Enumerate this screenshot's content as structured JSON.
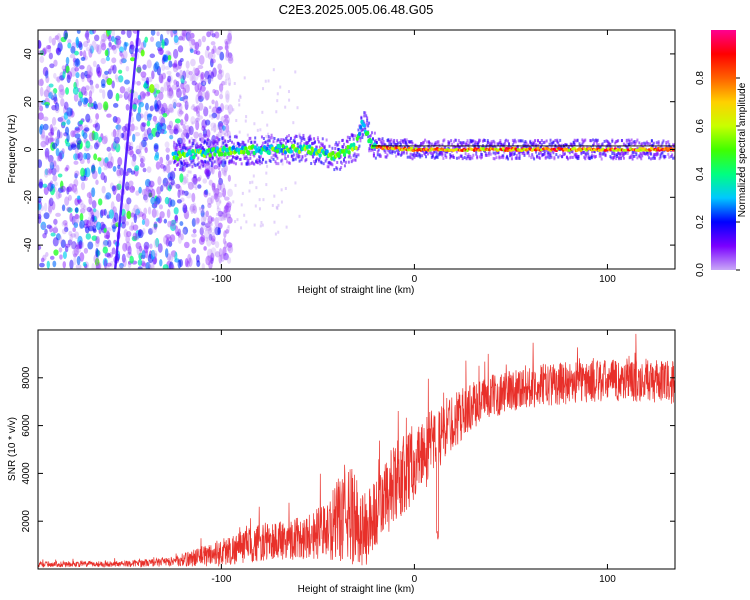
{
  "title": "C2E3.2025.005.06.48.G05",
  "chart_data": [
    {
      "type": "heatmap",
      "xlabel": "Height of straight line (km)",
      "ylabel": "Frequency (Hz)",
      "xlim": [
        -195,
        135
      ],
      "ylim": [
        -50,
        50
      ],
      "xticks": [
        -100,
        0,
        100
      ],
      "yticks": [
        -40,
        -20,
        0,
        20,
        40
      ],
      "colorbar": {
        "label": "Normalized spectral amplitude",
        "range": [
          0,
          1
        ],
        "ticks": [
          0,
          0.2,
          0.4,
          0.6,
          0.8
        ],
        "colors": [
          "#c9a9f7",
          "#7a00ff",
          "#0000ff",
          "#00c8ff",
          "#00ff80",
          "#40ff00",
          "#c8ff00",
          "#ffd000",
          "#ff6000",
          "#ff0000",
          "#ff0090"
        ]
      },
      "features": {
        "noise_region_x": [
          -195,
          -110
        ],
        "steep_streak": {
          "x": [
            -155,
            -143
          ],
          "y": [
            -50,
            50
          ]
        },
        "carrier_track": [
          {
            "x": -125,
            "y": -3
          },
          {
            "x": -105,
            "y": -1
          },
          {
            "x": -80,
            "y": 0
          },
          {
            "x": -55,
            "y": 0
          },
          {
            "x": -40,
            "y": -3
          },
          {
            "x": -30,
            "y": 2
          },
          {
            "x": -27,
            "y": 12
          },
          {
            "x": -22,
            "y": 1
          },
          {
            "x": 0,
            "y": 0
          },
          {
            "x": 135,
            "y": 0
          }
        ]
      }
    },
    {
      "type": "line",
      "xlabel": "Height of straight line (km)",
      "ylabel": "SNR (10 * v/v)",
      "xlim": [
        -195,
        135
      ],
      "ylim": [
        0,
        10000
      ],
      "xticks": [
        -100,
        0,
        100
      ],
      "yticks": [
        2000,
        4000,
        6000,
        8000
      ],
      "color": "#e8302a",
      "envelope": [
        {
          "x": -195,
          "mean": 200,
          "spread": 120
        },
        {
          "x": -150,
          "mean": 220,
          "spread": 120
        },
        {
          "x": -125,
          "mean": 300,
          "spread": 200
        },
        {
          "x": -100,
          "mean": 700,
          "spread": 600
        },
        {
          "x": -80,
          "mean": 1100,
          "spread": 800
        },
        {
          "x": -60,
          "mean": 1300,
          "spread": 900
        },
        {
          "x": -45,
          "mean": 1600,
          "spread": 1200
        },
        {
          "x": -35,
          "mean": 2400,
          "spread": 2200
        },
        {
          "x": -25,
          "mean": 1600,
          "spread": 1600
        },
        {
          "x": -18,
          "mean": 2600,
          "spread": 1500
        },
        {
          "x": -10,
          "mean": 3500,
          "spread": 1800
        },
        {
          "x": 0,
          "mean": 4500,
          "spread": 1600
        },
        {
          "x": 10,
          "mean": 5200,
          "spread": 1500
        },
        {
          "x": 20,
          "mean": 6200,
          "spread": 1200
        },
        {
          "x": 35,
          "mean": 7100,
          "spread": 900
        },
        {
          "x": 55,
          "mean": 7600,
          "spread": 900
        },
        {
          "x": 80,
          "mean": 7800,
          "spread": 900
        },
        {
          "x": 110,
          "mean": 7900,
          "spread": 900
        },
        {
          "x": 135,
          "mean": 7800,
          "spread": 900
        }
      ],
      "dips": [
        {
          "x": 12,
          "y": 1200
        }
      ]
    }
  ]
}
